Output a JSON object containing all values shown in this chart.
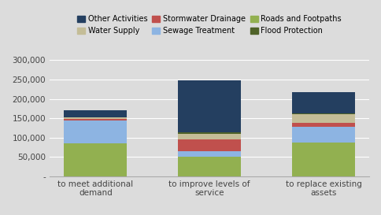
{
  "categories": [
    "to meet additional\ndemand",
    "to improve levels of\nservice",
    "to replace existing\nassets"
  ],
  "series": [
    {
      "label": "Roads and Footpaths",
      "color": "#92b050",
      "values": [
        85000,
        50000,
        88000
      ]
    },
    {
      "label": "Sewage Treatment",
      "color": "#8db4e2",
      "values": [
        60000,
        15000,
        40000
      ]
    },
    {
      "label": "Stormwater Drainage",
      "color": "#c0504d",
      "values": [
        4000,
        30000,
        10000
      ]
    },
    {
      "label": "Water Supply",
      "color": "#c4bd97",
      "values": [
        3000,
        15000,
        22000
      ]
    },
    {
      "label": "Flood Protection",
      "color": "#4f6228",
      "values": [
        1000,
        3000,
        2000
      ]
    },
    {
      "label": "Other Activities",
      "color": "#243f60",
      "values": [
        17000,
        135000,
        56000
      ]
    }
  ],
  "legend_order": [
    {
      "label": "Other Activities",
      "color": "#243f60"
    },
    {
      "label": "Water Supply",
      "color": "#c4bd97"
    },
    {
      "label": "Stormwater Drainage",
      "color": "#c0504d"
    },
    {
      "label": "Sewage Treatment",
      "color": "#8db4e2"
    },
    {
      "label": "Roads and Footpaths",
      "color": "#92b050"
    },
    {
      "label": "Flood Protection",
      "color": "#4f6228"
    }
  ],
  "ylim": [
    0,
    300000
  ],
  "yticks": [
    0,
    50000,
    100000,
    150000,
    200000,
    250000,
    300000
  ],
  "ytick_labels": [
    "-",
    "50,000",
    "100,000",
    "150,000",
    "200,000",
    "250,000",
    "300,000"
  ],
  "background_color": "#dcdcdc",
  "bar_width": 0.55,
  "figsize": [
    4.84,
    2.73
  ],
  "dpi": 100
}
